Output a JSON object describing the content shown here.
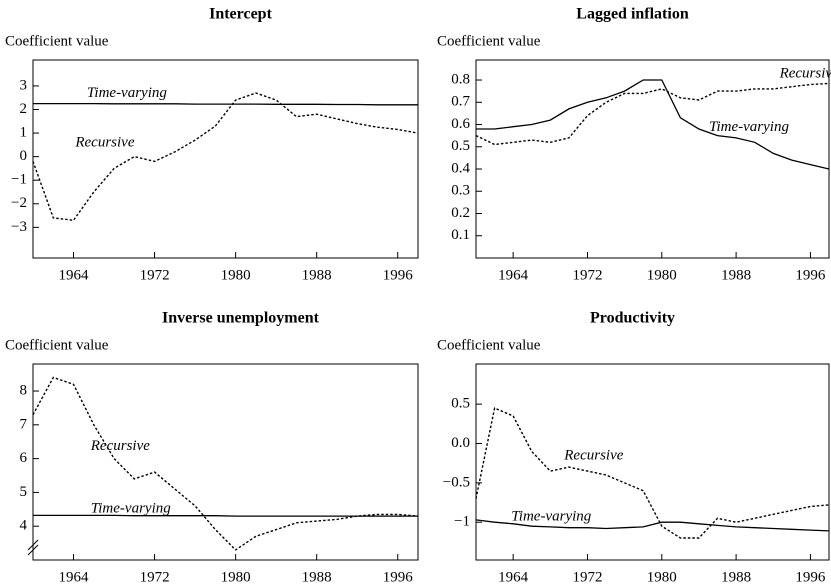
{
  "chart_data": [
    {
      "type": "line",
      "title": "Intercept",
      "ylabel": "Coefficient value",
      "x": [
        1960,
        1962,
        1964,
        1966,
        1968,
        1970,
        1972,
        1974,
        1976,
        1978,
        1980,
        1982,
        1984,
        1986,
        1988,
        1990,
        1992,
        1994,
        1996,
        1998
      ],
      "xlim": [
        1960,
        1998
      ],
      "xticks": [
        1964,
        1972,
        1980,
        1988,
        1996
      ],
      "ylim": [
        -4.3,
        4.1
      ],
      "yticks": [
        -3,
        -2,
        -1,
        0,
        1,
        2,
        3
      ],
      "series": [
        {
          "name": "Time-varying",
          "color": "#000000",
          "style": "solid",
          "values": [
            2.25,
            2.25,
            2.25,
            2.25,
            2.24,
            2.24,
            2.24,
            2.24,
            2.23,
            2.23,
            2.23,
            2.23,
            2.22,
            2.22,
            2.22,
            2.21,
            2.21,
            2.2,
            2.2,
            2.2
          ]
        },
        {
          "name": "Recursive",
          "color": "#000000",
          "style": "dotted",
          "values": [
            -0.2,
            -2.6,
            -2.7,
            -1.5,
            -0.5,
            0.0,
            -0.2,
            0.2,
            0.7,
            1.3,
            2.4,
            2.7,
            2.4,
            1.7,
            1.8,
            1.6,
            1.4,
            1.25,
            1.15,
            1.0
          ]
        }
      ]
    },
    {
      "type": "line",
      "title": "Lagged inflation",
      "ylabel": "Coefficient value",
      "x": [
        1960,
        1962,
        1964,
        1966,
        1968,
        1970,
        1972,
        1974,
        1976,
        1978,
        1980,
        1982,
        1984,
        1986,
        1988,
        1990,
        1992,
        1994,
        1996,
        1998
      ],
      "xlim": [
        1960,
        1998
      ],
      "xticks": [
        1964,
        1972,
        1980,
        1988,
        1996
      ],
      "ylim": [
        0,
        0.89
      ],
      "yticks": [
        0.1,
        0.2,
        0.3,
        0.4,
        0.5,
        0.6,
        0.7,
        0.8
      ],
      "series": [
        {
          "name": "Recursive",
          "color": "#000000",
          "style": "dotted",
          "values": [
            0.55,
            0.51,
            0.52,
            0.53,
            0.52,
            0.54,
            0.64,
            0.7,
            0.74,
            0.74,
            0.76,
            0.72,
            0.71,
            0.75,
            0.75,
            0.76,
            0.76,
            0.77,
            0.78,
            0.785
          ]
        },
        {
          "name": "Time-varying",
          "color": "#000000",
          "style": "solid",
          "values": [
            0.58,
            0.58,
            0.59,
            0.6,
            0.62,
            0.67,
            0.7,
            0.72,
            0.75,
            0.8,
            0.8,
            0.63,
            0.58,
            0.55,
            0.54,
            0.52,
            0.47,
            0.44,
            0.42,
            0.4
          ]
        }
      ]
    },
    {
      "type": "line",
      "title": "Inverse unemployment",
      "ylabel": "Coefficient value",
      "x": [
        1960,
        1962,
        1964,
        1966,
        1968,
        1970,
        1972,
        1974,
        1976,
        1978,
        1980,
        1982,
        1984,
        1986,
        1988,
        1990,
        1992,
        1994,
        1996,
        1998
      ],
      "xlim": [
        1960,
        1998
      ],
      "xticks": [
        1964,
        1972,
        1980,
        1988,
        1996
      ],
      "ylim": [
        3.0,
        8.8
      ],
      "yticks": [
        4,
        5,
        6,
        7,
        8
      ],
      "series": [
        {
          "name": "Recursive",
          "color": "#000000",
          "style": "dotted",
          "values": [
            7.3,
            8.4,
            8.2,
            7.0,
            6.0,
            5.4,
            5.6,
            5.1,
            4.6,
            3.9,
            3.3,
            3.7,
            3.9,
            4.1,
            4.15,
            4.2,
            4.3,
            4.35,
            4.35,
            4.3
          ]
        },
        {
          "name": "Time-varying",
          "color": "#000000",
          "style": "solid",
          "values": [
            4.32,
            4.32,
            4.32,
            4.32,
            4.32,
            4.31,
            4.31,
            4.31,
            4.31,
            4.31,
            4.3,
            4.3,
            4.3,
            4.3,
            4.3,
            4.3,
            4.3,
            4.3,
            4.3,
            4.3
          ]
        }
      ]
    },
    {
      "type": "line",
      "title": "Productivity",
      "ylabel": "Coefficient value",
      "x": [
        1960,
        1962,
        1964,
        1966,
        1968,
        1970,
        1972,
        1974,
        1976,
        1978,
        1980,
        1982,
        1984,
        1986,
        1988,
        1990,
        1992,
        1994,
        1996,
        1998
      ],
      "xlim": [
        1960,
        1998
      ],
      "xticks": [
        1964,
        1972,
        1980,
        1988,
        1996
      ],
      "ylim": [
        -1.48,
        1.01
      ],
      "yticks": [
        -1.0,
        -0.5,
        {
          "value": 0,
          "label": "0.0"
        },
        0.5
      ],
      "series": [
        {
          "name": "Recursive",
          "color": "#000000",
          "style": "dotted",
          "values": [
            -0.7,
            0.45,
            0.35,
            -0.1,
            -0.35,
            -0.3,
            -0.35,
            -0.4,
            -0.5,
            -0.6,
            -1.05,
            -1.2,
            -1.2,
            -0.95,
            -1.0,
            -0.95,
            -0.9,
            -0.85,
            -0.8,
            -0.78
          ]
        },
        {
          "name": "Time-varying",
          "color": "#000000",
          "style": "solid",
          "values": [
            -0.97,
            -1.0,
            -1.02,
            -1.05,
            -1.06,
            -1.07,
            -1.07,
            -1.08,
            -1.07,
            -1.06,
            -1.0,
            -1.0,
            -1.02,
            -1.04,
            -1.06,
            -1.07,
            -1.08,
            -1.09,
            -1.1,
            -1.11
          ]
        }
      ]
    }
  ]
}
